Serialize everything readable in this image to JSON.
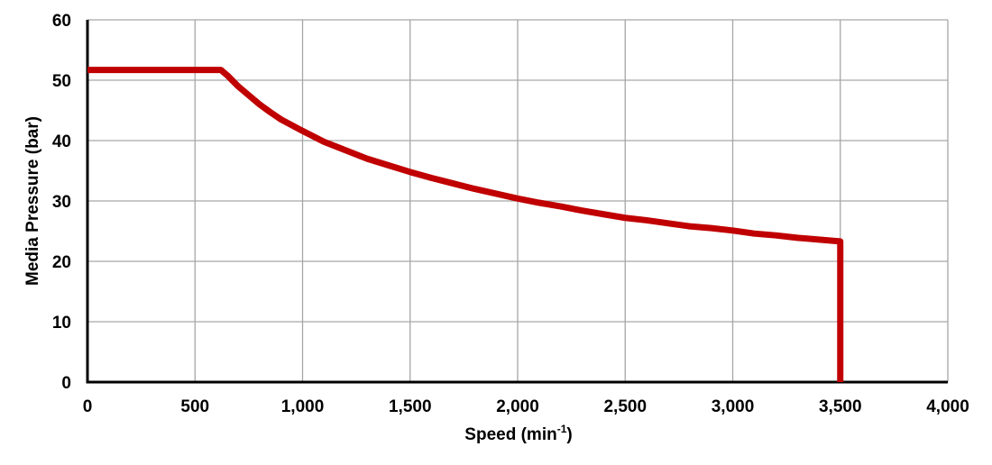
{
  "chart_data": {
    "type": "line",
    "xlabel": "Speed (min",
    "xlabel_sup": "-1",
    "xlabel_close": ")",
    "ylabel": "Media Pressure (bar)",
    "xlim": [
      0,
      4000
    ],
    "ylim": [
      0,
      60
    ],
    "x_ticks": [
      0,
      500,
      1000,
      1500,
      2000,
      2500,
      3000,
      3500,
      4000
    ],
    "x_tick_labels": [
      "0",
      "500",
      "1,000",
      "1,500",
      "2,000",
      "2,500",
      "3,000",
      "3,500",
      "4,000"
    ],
    "y_ticks": [
      0,
      10,
      20,
      30,
      40,
      50,
      60
    ],
    "y_tick_labels": [
      "0",
      "10",
      "20",
      "30",
      "40",
      "50",
      "60"
    ],
    "grid": true,
    "legend": "none",
    "series": [
      {
        "color": "#c00000",
        "x": [
          0,
          620,
          650,
          700,
          750,
          800,
          850,
          900,
          1000,
          1100,
          1200,
          1300,
          1400,
          1500,
          1600,
          1700,
          1800,
          1900,
          2000,
          2100,
          2200,
          2300,
          2400,
          2500,
          2600,
          2700,
          2800,
          2900,
          3000,
          3100,
          3200,
          3300,
          3400,
          3500,
          3500
        ],
        "y": [
          51.7,
          51.7,
          50.8,
          49.0,
          47.5,
          46.0,
          44.7,
          43.5,
          41.6,
          39.8,
          38.4,
          37.0,
          35.9,
          34.8,
          33.8,
          32.9,
          32.0,
          31.2,
          30.4,
          29.7,
          29.1,
          28.4,
          27.8,
          27.2,
          26.8,
          26.3,
          25.8,
          25.5,
          25.1,
          24.6,
          24.3,
          23.9,
          23.6,
          23.3,
          0
        ]
      }
    ]
  }
}
